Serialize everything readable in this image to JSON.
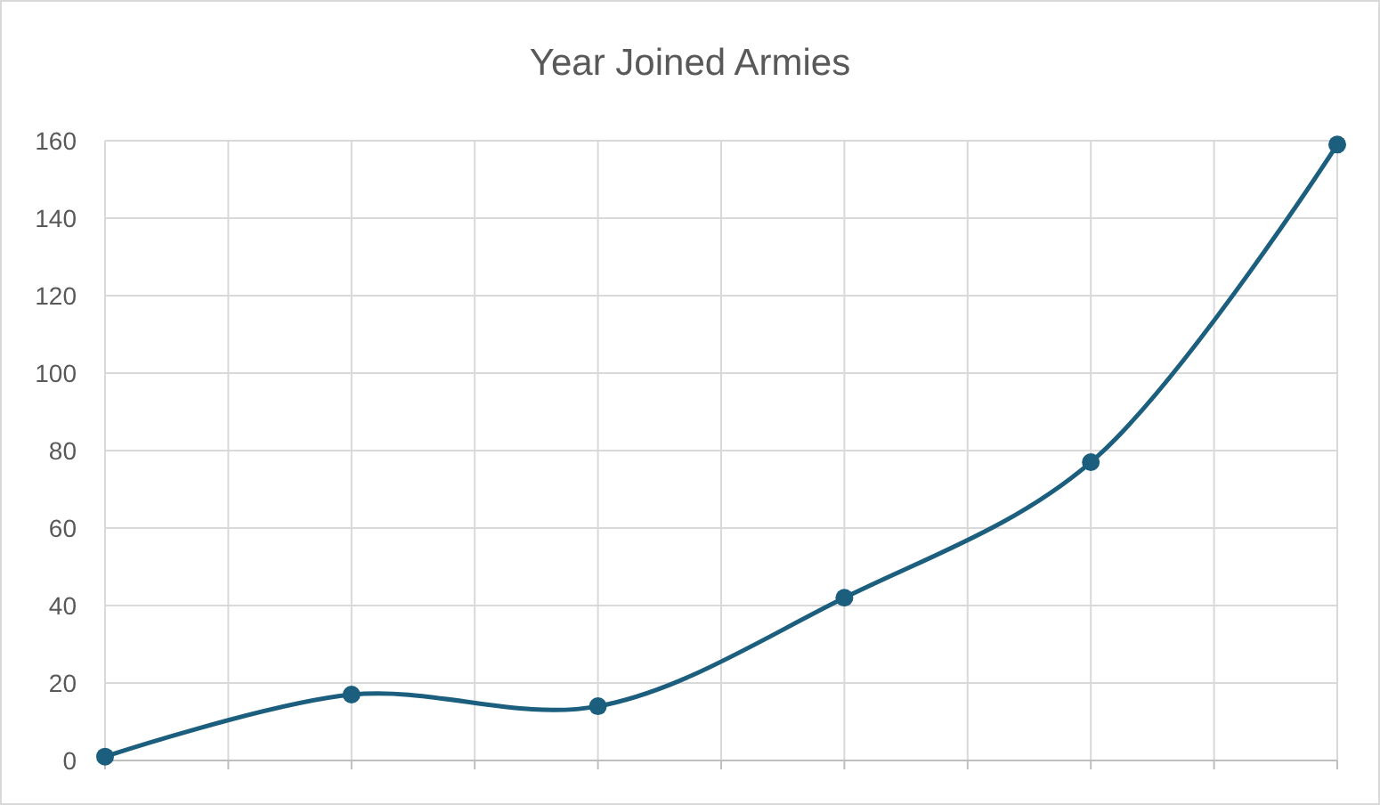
{
  "chart_data": {
    "type": "line",
    "title": "Year Joined Armies",
    "categories": [
      null,
      null,
      null,
      null,
      null,
      null
    ],
    "series": [
      {
        "color": "#1b5e7e",
        "values": [
          1,
          17,
          14,
          42,
          77,
          159
        ]
      }
    ],
    "ylim": [
      0,
      160
    ],
    "yticks": [
      0,
      20,
      40,
      60,
      80,
      100,
      120,
      140,
      160
    ],
    "grid": true,
    "marker": "circle",
    "line_style": "solid"
  }
}
